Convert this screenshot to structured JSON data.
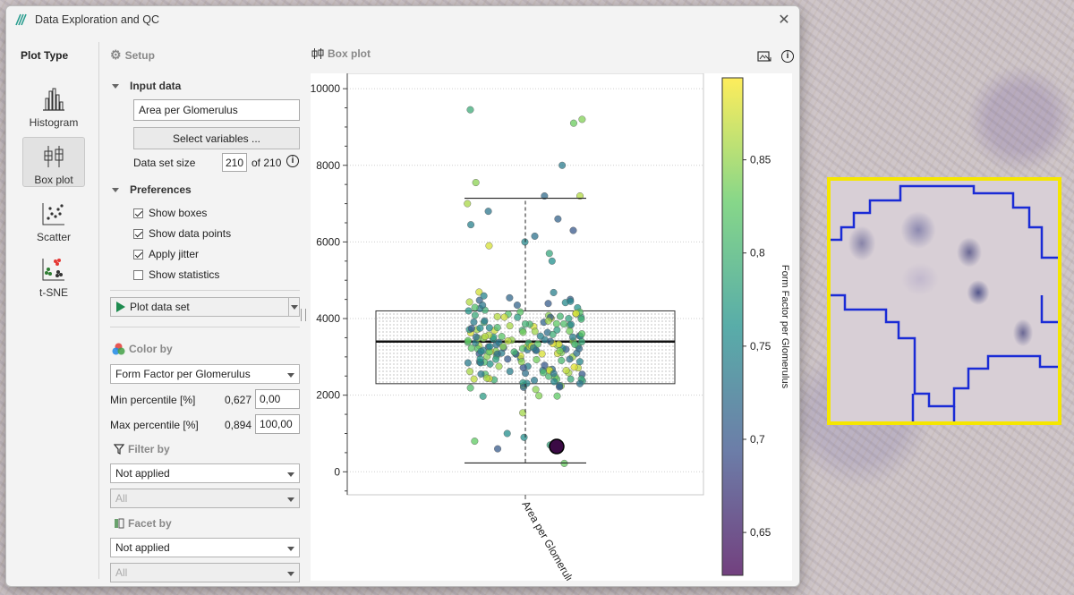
{
  "window": {
    "title": "Data Exploration and QC"
  },
  "plot_type": {
    "title": "Plot Type",
    "items": [
      {
        "label": "Histogram",
        "icon": "histogram-icon"
      },
      {
        "label": "Box plot",
        "icon": "boxplot-icon",
        "active": true
      },
      {
        "label": "Scatter",
        "icon": "scatter-icon"
      },
      {
        "label": "t-SNE",
        "icon": "tsne-icon"
      }
    ]
  },
  "setup": {
    "title": "Setup",
    "input_data_title": "Input data",
    "variable_value": "Area per Glomerulus",
    "select_variables_label": "Select variables ...",
    "data_set_size_label": "Data set size",
    "data_set_size_value": "210",
    "data_set_size_total": "of 210",
    "preferences_title": "Preferences",
    "checkboxes": [
      {
        "label": "Show boxes",
        "checked": true
      },
      {
        "label": "Show data points",
        "checked": true
      },
      {
        "label": "Apply jitter",
        "checked": true
      },
      {
        "label": "Show statistics",
        "checked": false
      }
    ],
    "plot_button_label": "Plot data set",
    "color_by_title": "Color by",
    "color_by_value": "Form Factor per Glomerulus",
    "min_percentile_label": "Min percentile [%]",
    "min_percentile_value": "0,627",
    "min_percentile_input": "0,00",
    "max_percentile_label": "Max percentile [%]",
    "max_percentile_value": "0,894",
    "max_percentile_input": "100,00",
    "filter_by_title": "Filter by",
    "filter_by_value": "Not applied",
    "filter_by_sub": "All",
    "facet_by_title": "Facet by",
    "facet_by_value": "Not applied",
    "facet_by_sub": "All"
  },
  "plot": {
    "title": "Box plot"
  },
  "chart_data": {
    "type": "box",
    "category": "Area per Glomerulus",
    "ylim": [
      -600,
      10400
    ],
    "yticks": [
      0,
      2000,
      4000,
      6000,
      8000,
      10000
    ],
    "ytick_labels": [
      "0",
      "2000",
      "4000",
      "6000",
      "8000",
      "10000"
    ],
    "box": {
      "whisker_low": 230,
      "q1": 2300,
      "median": 3400,
      "q3": 4200,
      "whisker_high": 7140
    },
    "highlight_point": {
      "y": 660
    },
    "colorbar": {
      "label": "Form Factor per Glomerulus",
      "range": [
        0.627,
        0.894
      ],
      "ticks": [
        0.65,
        0.7,
        0.75,
        0.8,
        0.85
      ],
      "tick_labels": [
        "0,65",
        "0,7",
        "0,75",
        "0,8",
        "0,85"
      ]
    },
    "grid": true
  }
}
